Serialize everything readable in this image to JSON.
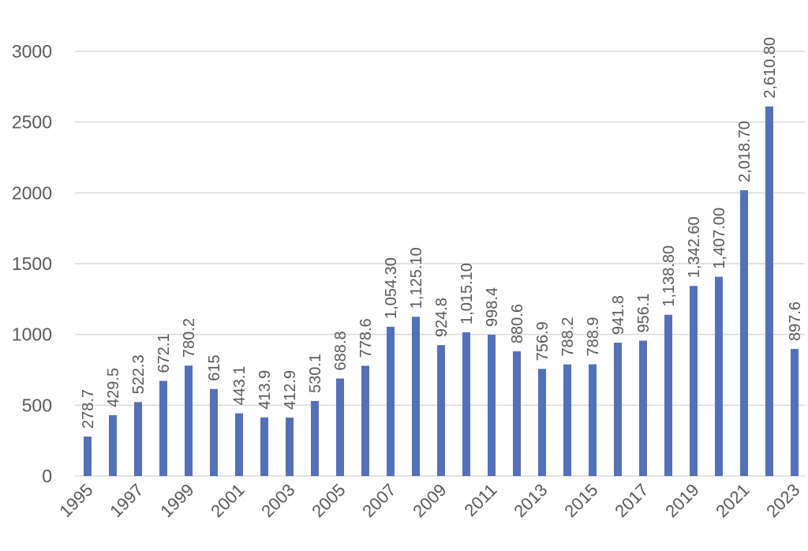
{
  "chart_data": {
    "type": "bar",
    "title": "",
    "xlabel": "",
    "ylabel": "",
    "ylim": [
      0,
      3000
    ],
    "yticks": [
      0,
      500,
      1000,
      1500,
      2000,
      2500,
      3000
    ],
    "grid": true,
    "bar_color": "#5470B8",
    "categories": [
      "1995",
      "1996",
      "1997",
      "1998",
      "1999",
      "2000",
      "2001",
      "2002",
      "2003",
      "2004",
      "2005",
      "2006",
      "2007",
      "2008",
      "2009",
      "2010",
      "2011",
      "2012",
      "2013",
      "2014",
      "2015",
      "2016",
      "2017",
      "2018",
      "2019",
      "2020",
      "2021",
      "2022",
      "2023"
    ],
    "xtick_labels": [
      "1995",
      "",
      "1997",
      "",
      "1999",
      "",
      "2001",
      "",
      "2003",
      "",
      "2005",
      "",
      "2007",
      "",
      "2009",
      "",
      "2011",
      "",
      "2013",
      "",
      "2015",
      "",
      "2017",
      "",
      "2019",
      "",
      "2021",
      "",
      "2023"
    ],
    "values": [
      278.7,
      429.5,
      522.3,
      672.1,
      780.2,
      615,
      443.1,
      413.9,
      412.9,
      530.1,
      688.8,
      778.6,
      1054.3,
      1125.1,
      924.8,
      1015.1,
      998.4,
      880.6,
      756.9,
      788.2,
      788.9,
      941.8,
      956.1,
      1138.8,
      1342.6,
      1407.0,
      2018.7,
      2610.8,
      897.6
    ],
    "data_labels": [
      "278.7",
      "429.5",
      "522.3",
      "672.1",
      "780.2",
      "615",
      "443.1",
      "413.9",
      "412.9",
      "530.1",
      "688.8",
      "778.6",
      "1,054.30",
      "1,125.10",
      "924.8",
      "1,015.10",
      "998.4",
      "880.6",
      "756.9",
      "788.2",
      "788.9",
      "941.8",
      "956.1",
      "1,138.80",
      "1,342.60",
      "1,407.00",
      "2,018.70",
      "2,610.80",
      "897.6"
    ]
  }
}
